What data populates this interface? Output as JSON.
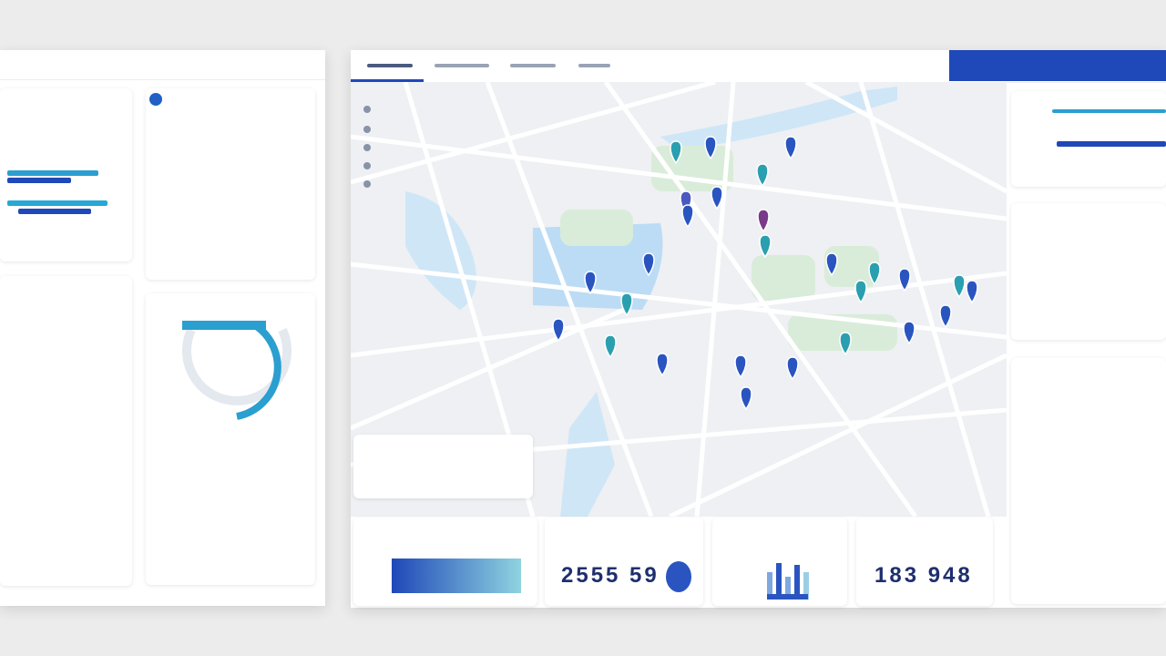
{
  "kpis": {
    "left_value": "2555 59",
    "right_value": "183 948"
  }
}
